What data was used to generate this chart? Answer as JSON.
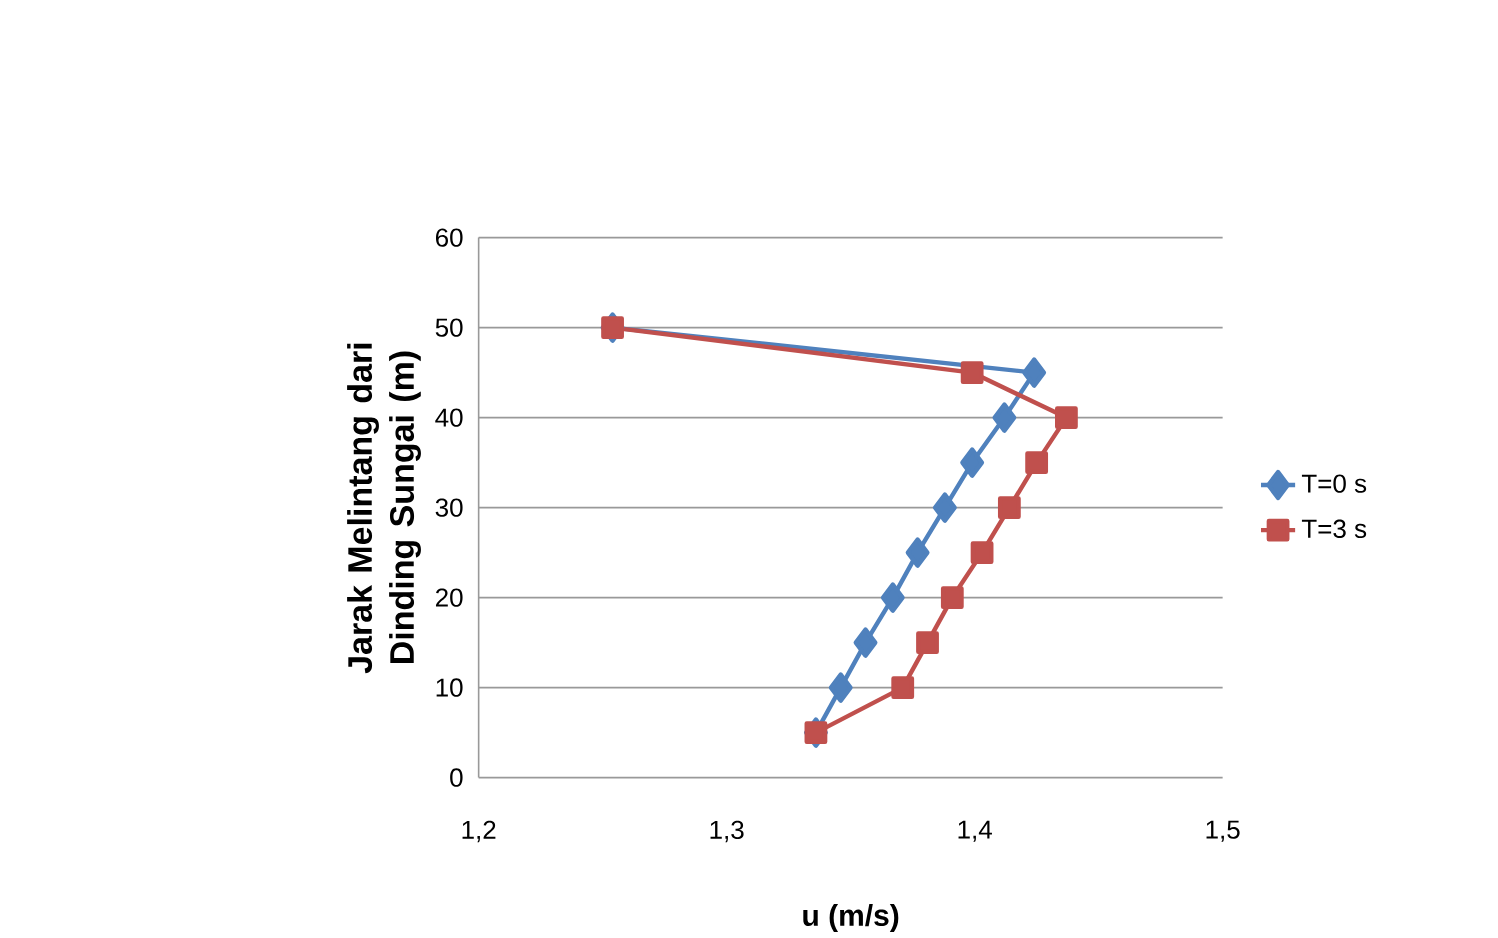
{
  "chart_data": {
    "type": "line",
    "xlabel": "u (m/s)",
    "ylabel": "Jarak Melintang dari Dinding Sungai (m)",
    "xlim": [
      1.2,
      1.5
    ],
    "xticks": [
      {
        "value": 1.2,
        "label": "1,2"
      },
      {
        "value": 1.3,
        "label": "1,3"
      },
      {
        "value": 1.4,
        "label": "1,4"
      },
      {
        "value": 1.5,
        "label": "1,5"
      }
    ],
    "ylim": [
      0,
      60
    ],
    "yticks": [
      0,
      10,
      20,
      30,
      40,
      50,
      60
    ],
    "grid": "y",
    "legend": "right",
    "series": [
      {
        "name": "T=0 s",
        "color": "#4f81bd",
        "marker": "diamond",
        "x": [
          1.254,
          1.424,
          1.412,
          1.399,
          1.388,
          1.377,
          1.367,
          1.356,
          1.346,
          1.336
        ],
        "values": [
          50,
          45,
          40,
          35,
          30,
          25,
          20,
          15,
          10,
          5
        ]
      },
      {
        "name": "T=3 s",
        "color": "#c0504d",
        "marker": "square",
        "x": [
          1.254,
          1.399,
          1.437,
          1.425,
          1.414,
          1.403,
          1.391,
          1.381,
          1.371,
          1.336
        ],
        "values": [
          50,
          45,
          40,
          35,
          30,
          25,
          20,
          15,
          10,
          5
        ]
      }
    ]
  }
}
